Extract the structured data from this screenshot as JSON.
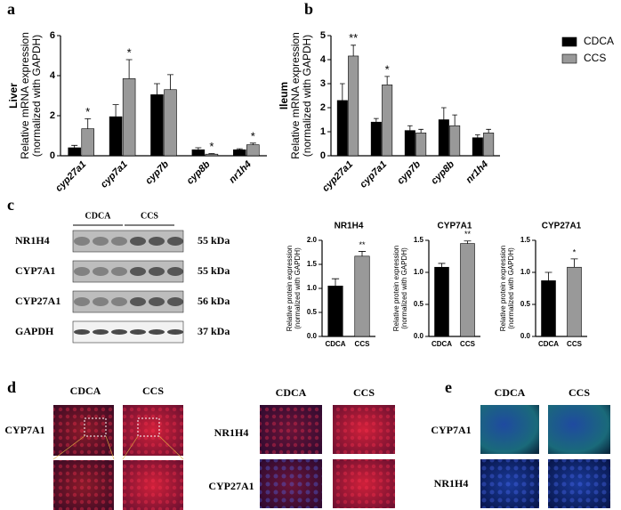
{
  "panel_labels": [
    "a",
    "b",
    "c",
    "d",
    "e"
  ],
  "chart_data": [
    {
      "type": "bar",
      "ylabel": [
        "Liver",
        "Relative mRNA expression",
        "(normalized with GAPDH)"
      ],
      "categories": [
        "cyp27a1",
        "cyp7a1",
        "cyp7b",
        "cyp8b",
        "nr1h4"
      ],
      "series": [
        {
          "color": "#000000",
          "values": [
            0.4,
            1.95,
            3.05,
            0.3,
            0.3
          ],
          "errors": [
            0.12,
            0.6,
            0.55,
            0.1,
            0.05
          ],
          "significance": [
            null,
            null,
            null,
            null,
            null
          ]
        },
        {
          "color": "#999999",
          "values": [
            1.35,
            3.85,
            3.3,
            0.08,
            0.55
          ],
          "errors": [
            0.5,
            0.95,
            0.75,
            0.03,
            0.08
          ],
          "significance": [
            "*",
            "*",
            null,
            "*",
            "*"
          ]
        }
      ],
      "ylim": [
        0,
        6
      ],
      "yticks": [
        0,
        2,
        4,
        6
      ]
    },
    {
      "type": "bar",
      "ylabel": [
        "Ileum",
        "Relative mRNA expression",
        "(normalized with GAPDH)"
      ],
      "categories": [
        "cyp27a1",
        "cyp7a1",
        "cyp7b",
        "cyp8b",
        "nr1h4"
      ],
      "series": [
        {
          "name": "CDCA",
          "color": "#000000",
          "values": [
            2.3,
            1.4,
            1.05,
            1.5,
            0.75
          ],
          "errors": [
            0.7,
            0.15,
            0.2,
            0.5,
            0.12
          ],
          "significance": [
            null,
            null,
            null,
            null,
            null
          ]
        },
        {
          "name": "CCS",
          "color": "#999999",
          "values": [
            4.15,
            2.95,
            0.95,
            1.25,
            0.95
          ],
          "errors": [
            0.45,
            0.35,
            0.15,
            0.45,
            0.15
          ],
          "significance": [
            "**",
            "*",
            null,
            null,
            null
          ]
        }
      ],
      "ylim": [
        0,
        5
      ],
      "yticks": [
        0,
        1,
        2,
        3,
        4,
        5
      ],
      "legend": "right"
    },
    {
      "type": "bar",
      "title": "NR1H4",
      "ylabel": [
        "Relative protein expression",
        "(normalized with GAPDH)"
      ],
      "categories": [
        "CDCA",
        "CCS"
      ],
      "series": [
        {
          "colors": [
            "#000000",
            "#999999"
          ],
          "values": [
            1.05,
            1.67
          ],
          "errors": [
            0.15,
            0.1
          ],
          "significance": [
            null,
            "**"
          ]
        }
      ],
      "ylim": [
        0,
        2
      ],
      "yticks": [
        {
          "value": 0,
          "label": "0.0"
        },
        {
          "value": 0.5,
          "label": "0.5"
        },
        {
          "value": 1,
          "label": "1.0"
        },
        {
          "value": 1.5,
          "label": "1.5"
        },
        {
          "value": 2,
          "label": "2.0"
        }
      ]
    },
    {
      "type": "bar",
      "title": "CYP7A1",
      "ylabel": [
        "Relative protein expression",
        "(normalized with GAPDH)"
      ],
      "categories": [
        "CDCA",
        "CCS"
      ],
      "series": [
        {
          "colors": [
            "#000000",
            "#999999"
          ],
          "values": [
            1.08,
            1.45
          ],
          "errors": [
            0.06,
            0.04
          ],
          "significance": [
            null,
            "**"
          ]
        }
      ],
      "ylim": [
        0,
        1.5
      ],
      "yticks": [
        {
          "value": 0,
          "label": "0.0"
        },
        {
          "value": 0.5,
          "label": "0.5"
        },
        {
          "value": 1,
          "label": "1.0"
        },
        {
          "value": 1.5,
          "label": "1.5"
        }
      ]
    },
    {
      "type": "bar",
      "title": "CYP27A1",
      "ylabel": [
        "Relative protein expression",
        "(normalized with GAPDH)"
      ],
      "categories": [
        "CDCA",
        "CCS"
      ],
      "series": [
        {
          "colors": [
            "#000000",
            "#999999"
          ],
          "values": [
            0.87,
            1.08
          ],
          "errors": [
            0.13,
            0.13
          ],
          "significance": [
            null,
            "*"
          ]
        }
      ],
      "ylim": [
        0,
        1.5
      ],
      "yticks": [
        {
          "value": 0,
          "label": "0.0"
        },
        {
          "value": 0.5,
          "label": "0.5"
        },
        {
          "value": 1,
          "label": "1.0"
        },
        {
          "value": 1.5,
          "label": "1.5"
        }
      ]
    }
  ],
  "blot": {
    "groups": [
      "CDCA",
      "CCS"
    ],
    "rows": [
      {
        "protein": "NR1H4",
        "weight": "55 kDa"
      },
      {
        "protein": "CYP7A1",
        "weight": "55 kDa"
      },
      {
        "protein": "CYP27A1",
        "weight": "56 kDa"
      },
      {
        "protein": "GAPDH",
        "weight": "37 kDa"
      }
    ]
  },
  "panel_d_left": {
    "columns": [
      "CDCA",
      "CCS"
    ],
    "rows": [
      "CYP7A1"
    ]
  },
  "panel_d_right": {
    "columns": [
      "CDCA",
      "CCS"
    ],
    "rows": [
      "NR1H4",
      "CYP27A1"
    ]
  },
  "panel_e": {
    "columns": [
      "CDCA",
      "CCS"
    ],
    "rows": [
      "CYP7A1",
      "NR1H4"
    ]
  }
}
